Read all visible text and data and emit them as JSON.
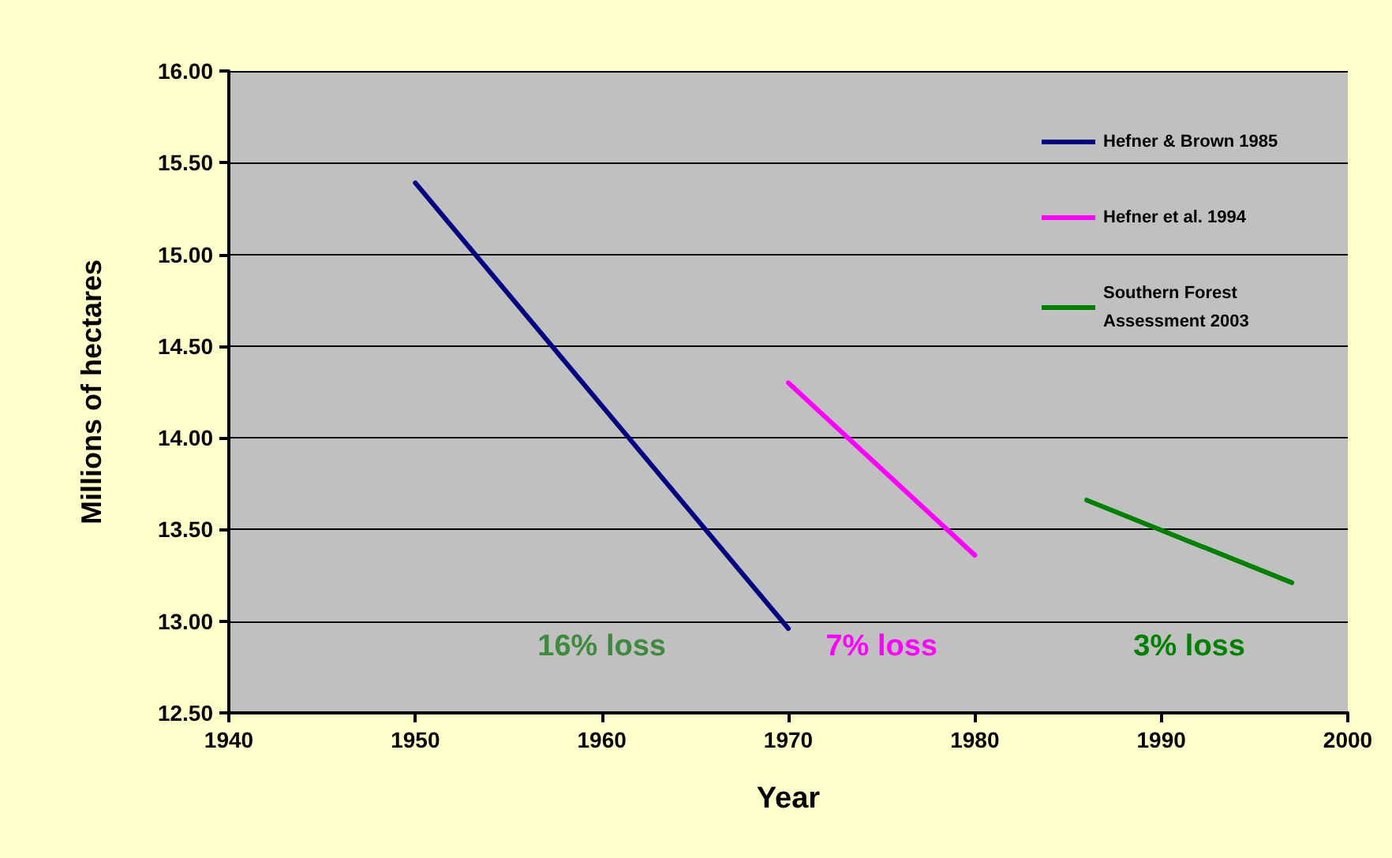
{
  "chart_data": {
    "type": "line",
    "xlabel": "Year",
    "ylabel": "Millions of hectares",
    "xlim": [
      1940,
      2000
    ],
    "xticks": [
      1940,
      1950,
      1960,
      1970,
      1980,
      1990,
      2000
    ],
    "ylim": [
      12.5,
      16
    ],
    "yticks": [
      {
        "value": 12.5,
        "label": "12.50"
      },
      {
        "value": 13,
        "label": "13.00"
      },
      {
        "value": 13.5,
        "label": "13.50"
      },
      {
        "value": 14,
        "label": "14.00"
      },
      {
        "value": 14.5,
        "label": "14.50"
      },
      {
        "value": 15,
        "label": "15.00"
      },
      {
        "value": 15.5,
        "label": "15.50"
      },
      {
        "value": 16,
        "label": "16.00"
      }
    ],
    "series": [
      {
        "name": "Hefner & Brown 1985",
        "color": "#000080",
        "x": [
          1950,
          1970
        ],
        "values": [
          15.39,
          12.96
        ]
      },
      {
        "name": "Hefner et al. 1994",
        "color": "#ff00ff",
        "x": [
          1970,
          1980
        ],
        "values": [
          14.3,
          13.36
        ]
      },
      {
        "name": "Southern Forest Assessment 2003",
        "color": "#008000",
        "x": [
          1986,
          1997
        ],
        "values": [
          13.66,
          13.21
        ]
      }
    ],
    "annotations": [
      "16% loss",
      "7% loss",
      "3% loss"
    ],
    "grid": "y",
    "legend": "top right",
    "marker": "none",
    "line_style": "solid"
  }
}
